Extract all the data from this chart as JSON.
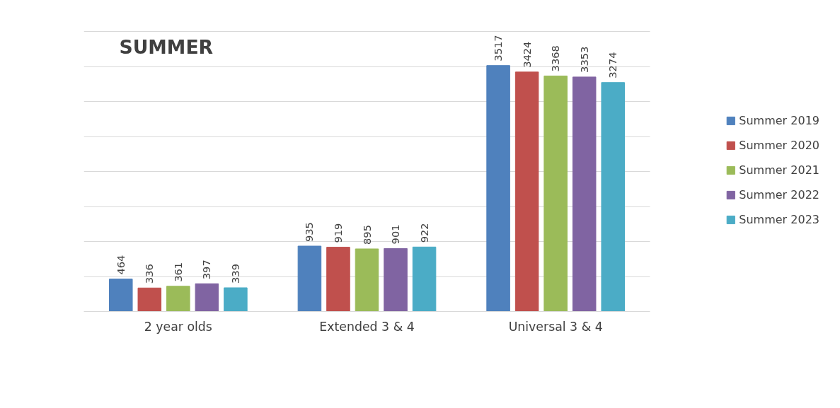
{
  "chart_data": {
    "type": "bar",
    "title": "SUMMER",
    "categories": [
      "2 year olds",
      "Extended 3 & 4",
      "Universal 3 & 4"
    ],
    "series": [
      {
        "name": "Summer 2019",
        "color": "#4f81bd",
        "values": [
          464,
          935,
          3517
        ]
      },
      {
        "name": "Summer 2020",
        "color": "#c0504d",
        "values": [
          336,
          919,
          3424
        ]
      },
      {
        "name": "Summer 2021",
        "color": "#9bbb59",
        "values": [
          361,
          895,
          3368
        ]
      },
      {
        "name": "Summer 2022",
        "color": "#8064a2",
        "values": [
          397,
          901,
          3353
        ]
      },
      {
        "name": "Summer 2023",
        "color": "#4bacc6",
        "values": [
          339,
          922,
          3274
        ]
      }
    ],
    "tick_labels": "x",
    "grid": "y",
    "legend": "right",
    "data_labels": true
  }
}
